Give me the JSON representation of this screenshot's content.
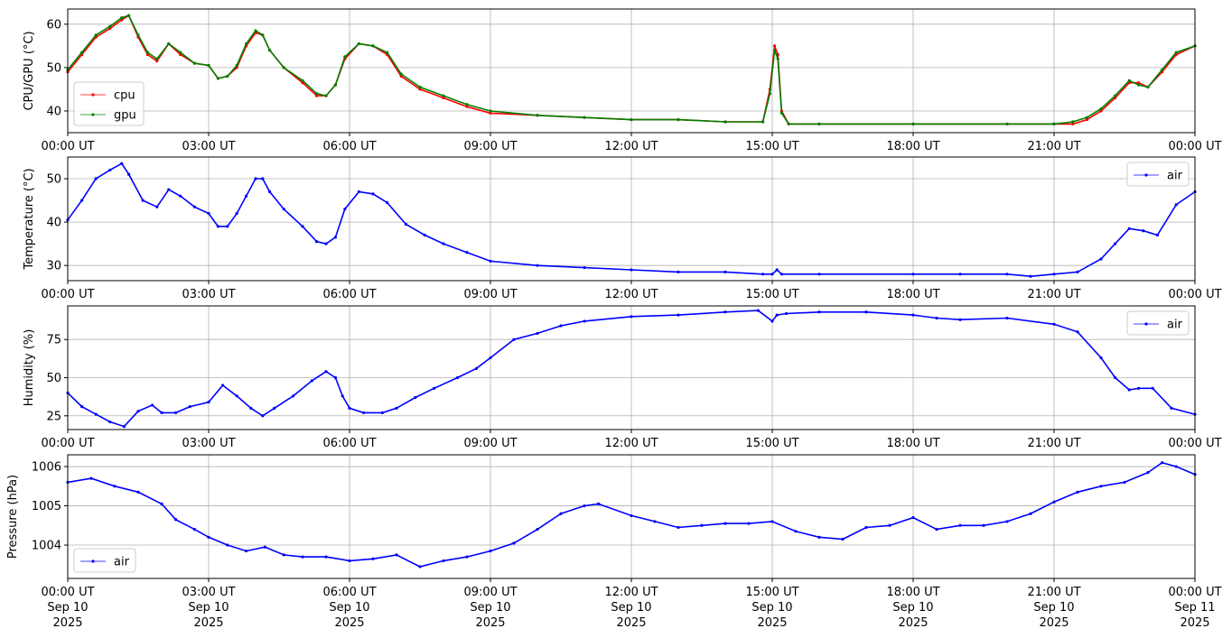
{
  "x_ticks": [
    "00:00 UT",
    "03:00 UT",
    "06:00 UT",
    "09:00 UT",
    "12:00 UT",
    "15:00 UT",
    "18:00 UT",
    "21:00 UT",
    "00:00 UT"
  ],
  "x_date_rows": [
    [
      "Sep 10",
      "Sep 10",
      "Sep 10",
      "Sep 10",
      "Sep 10",
      "Sep 10",
      "Sep 10",
      "Sep 10",
      "Sep 11"
    ],
    [
      "2025",
      "2025",
      "2025",
      "2025",
      "2025",
      "2025",
      "2025",
      "2025",
      "2025"
    ]
  ],
  "chart_data": [
    {
      "type": "line",
      "ylabel": "CPU/GPU (°C)",
      "ylim": [
        35,
        63.5
      ],
      "yticks": [
        40,
        50,
        60
      ],
      "xlim": [
        "2025-09-10 00:00",
        "2025-09-11 00:00"
      ],
      "grid": true,
      "legend": "lower-left",
      "series": [
        {
          "name": "cpu",
          "color": "#ff0000",
          "x": [
            0,
            0.3,
            0.6,
            0.9,
            1.15,
            1.3,
            1.5,
            1.7,
            1.9,
            2.15,
            2.4,
            2.7,
            3.0,
            3.2,
            3.4,
            3.6,
            3.8,
            4.0,
            4.15,
            4.3,
            4.6,
            5.0,
            5.3,
            5.5,
            5.7,
            5.9,
            6.2,
            6.5,
            6.8,
            7.1,
            7.5,
            8.0,
            8.5,
            9.0,
            10,
            11,
            12,
            13,
            14,
            14.8,
            14.95,
            15.05,
            15.12,
            15.2,
            15.35,
            16,
            18,
            20,
            21,
            21.4,
            21.7,
            22.0,
            22.3,
            22.6,
            22.8,
            23.0,
            23.3,
            23.6,
            24
          ],
          "y": [
            49,
            53,
            57,
            59,
            61,
            62,
            57,
            53,
            51.5,
            55.5,
            53,
            51,
            50.5,
            47.5,
            48,
            50,
            55,
            58,
            57.5,
            54,
            50,
            46.5,
            43.5,
            43.5,
            46,
            52,
            55.5,
            55,
            53,
            48,
            45,
            43,
            41,
            39.5,
            39,
            38.5,
            38,
            38,
            37.5,
            37.5,
            45,
            55,
            53,
            40,
            37,
            37,
            37,
            37,
            37,
            37,
            38,
            40,
            43,
            46.5,
            46.5,
            45.5,
            49,
            53,
            55
          ]
        },
        {
          "name": "gpu",
          "color": "#008000",
          "x": [
            0,
            0.3,
            0.6,
            0.9,
            1.15,
            1.3,
            1.5,
            1.7,
            1.9,
            2.15,
            2.4,
            2.7,
            3.0,
            3.2,
            3.4,
            3.6,
            3.8,
            4.0,
            4.15,
            4.3,
            4.6,
            5.0,
            5.3,
            5.5,
            5.7,
            5.9,
            6.2,
            6.5,
            6.8,
            7.1,
            7.5,
            8.0,
            8.5,
            9.0,
            10,
            11,
            12,
            13,
            14,
            14.8,
            14.95,
            15.05,
            15.12,
            15.2,
            15.35,
            16,
            18,
            20,
            21,
            21.4,
            21.7,
            22.0,
            22.3,
            22.6,
            22.8,
            23.0,
            23.3,
            23.6,
            24
          ],
          "y": [
            49.5,
            53.5,
            57.5,
            59.5,
            61.5,
            62,
            57.5,
            53.5,
            52,
            55.5,
            53.5,
            51,
            50.5,
            47.5,
            48,
            50.5,
            55.5,
            58.5,
            57.5,
            54,
            50,
            47,
            44,
            43.5,
            46,
            52.5,
            55.5,
            55,
            53.5,
            48.5,
            45.5,
            43.5,
            41.5,
            40,
            39,
            38.5,
            38,
            38,
            37.5,
            37.5,
            44,
            54,
            52,
            39.5,
            37,
            37,
            37,
            37,
            37,
            37.5,
            38.5,
            40.5,
            43.5,
            47,
            46,
            45.5,
            49.5,
            53.5,
            55
          ]
        }
      ]
    },
    {
      "type": "line",
      "ylabel": "Temperature (°C)",
      "ylim": [
        26.5,
        55
      ],
      "yticks": [
        30,
        40,
        50
      ],
      "xlim": [
        "2025-09-10 00:00",
        "2025-09-11 00:00"
      ],
      "grid": true,
      "legend": "top-right",
      "series": [
        {
          "name": "air",
          "color": "#0000ff",
          "x": [
            0,
            0.3,
            0.6,
            0.9,
            1.15,
            1.3,
            1.6,
            1.9,
            2.15,
            2.4,
            2.7,
            3.0,
            3.2,
            3.4,
            3.6,
            3.8,
            4.0,
            4.15,
            4.3,
            4.6,
            5.0,
            5.3,
            5.5,
            5.7,
            5.9,
            6.2,
            6.5,
            6.8,
            7.2,
            7.6,
            8.0,
            8.5,
            9.0,
            10,
            11,
            12,
            13,
            14,
            14.8,
            15.0,
            15.1,
            15.2,
            16,
            18,
            19,
            20,
            20.5,
            21,
            21.5,
            22.0,
            22.3,
            22.6,
            22.9,
            23.2,
            23.6,
            24
          ],
          "y": [
            40.5,
            45,
            50,
            52,
            53.5,
            51,
            45,
            43.5,
            47.5,
            46,
            43.5,
            42,
            39,
            39,
            42,
            46,
            50,
            50,
            47,
            43,
            39,
            35.5,
            35,
            36.5,
            43,
            47,
            46.5,
            44.5,
            39.5,
            37,
            35,
            33,
            31,
            30,
            29.5,
            29,
            28.5,
            28.5,
            28,
            28,
            29,
            28,
            28,
            28,
            28,
            28,
            27.5,
            28,
            28.5,
            31.5,
            35,
            38.5,
            38,
            37,
            44,
            47
          ]
        }
      ]
    },
    {
      "type": "line",
      "ylabel": "Humidity (%)",
      "ylim": [
        16,
        97
      ],
      "yticks": [
        25,
        50,
        75
      ],
      "xlim": [
        "2025-09-10 00:00",
        "2025-09-11 00:00"
      ],
      "grid": true,
      "legend": "top-right",
      "series": [
        {
          "name": "air",
          "color": "#0000ff",
          "x": [
            0,
            0.3,
            0.6,
            0.9,
            1.2,
            1.5,
            1.8,
            2.0,
            2.3,
            2.6,
            3.0,
            3.3,
            3.6,
            3.9,
            4.15,
            4.4,
            4.8,
            5.2,
            5.5,
            5.7,
            5.85,
            6.0,
            6.3,
            6.7,
            7.0,
            7.4,
            7.8,
            8.3,
            8.7,
            9.0,
            9.5,
            10,
            10.5,
            11,
            12,
            13,
            14,
            14.7,
            15.0,
            15.1,
            15.3,
            16,
            17,
            18,
            18.5,
            19,
            20,
            21,
            21.5,
            22.0,
            22.3,
            22.6,
            22.8,
            23.1,
            23.5,
            24
          ],
          "y": [
            40,
            31,
            26,
            21,
            18,
            28,
            32,
            27,
            27,
            31,
            34,
            45,
            38,
            30,
            25,
            30,
            38,
            48,
            54,
            50,
            38,
            30,
            27,
            27,
            30,
            37,
            43,
            50,
            56,
            63,
            75,
            79,
            84,
            87,
            90,
            91,
            93,
            94,
            87,
            91,
            92,
            93,
            93,
            91,
            89,
            88,
            89,
            85,
            80,
            63,
            50,
            42,
            43,
            43,
            30,
            26
          ]
        }
      ]
    },
    {
      "type": "line",
      "ylabel": "Pressure (hPa)",
      "ylim": [
        1003.15,
        1006.3
      ],
      "yticks": [
        "1004",
        "1005",
        "1006"
      ],
      "xlim": [
        "2025-09-10 00:00",
        "2025-09-11 00:00"
      ],
      "grid": true,
      "legend": "lower-left",
      "series": [
        {
          "name": "air",
          "color": "#0000ff",
          "x": [
            0,
            0.5,
            1.0,
            1.5,
            2.0,
            2.3,
            2.7,
            3.0,
            3.4,
            3.8,
            4.2,
            4.6,
            5.0,
            5.5,
            6.0,
            6.5,
            7.0,
            7.5,
            8.0,
            8.5,
            9.0,
            9.5,
            10.0,
            10.5,
            11.0,
            11.3,
            12.0,
            12.5,
            13.0,
            13.5,
            14.0,
            14.5,
            15.0,
            15.5,
            16.0,
            16.5,
            17.0,
            17.5,
            18.0,
            18.5,
            19.0,
            19.5,
            20.0,
            20.5,
            21.0,
            21.5,
            22.0,
            22.5,
            23.0,
            23.3,
            23.6,
            24
          ],
          "y": [
            1005.6,
            1005.7,
            1005.5,
            1005.35,
            1005.05,
            1004.65,
            1004.4,
            1004.2,
            1004.0,
            1003.85,
            1003.95,
            1003.75,
            1003.7,
            1003.7,
            1003.6,
            1003.65,
            1003.75,
            1003.45,
            1003.6,
            1003.7,
            1003.85,
            1004.05,
            1004.4,
            1004.8,
            1005.0,
            1005.05,
            1004.75,
            1004.6,
            1004.45,
            1004.5,
            1004.55,
            1004.55,
            1004.6,
            1004.35,
            1004.2,
            1004.15,
            1004.45,
            1004.5,
            1004.7,
            1004.4,
            1004.5,
            1004.5,
            1004.6,
            1004.8,
            1005.1,
            1005.35,
            1005.5,
            1005.6,
            1005.85,
            1006.1,
            1006.0,
            1005.8
          ]
        }
      ]
    }
  ]
}
